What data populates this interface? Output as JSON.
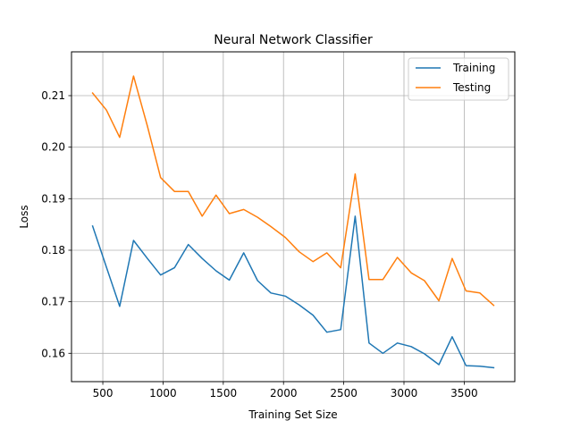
{
  "chart_data": {
    "type": "line",
    "title": "Neural Network Classifier",
    "xlabel": "Training Set Size",
    "ylabel": "Loss",
    "xlim": [
      240,
      3920
    ],
    "ylim": [
      0.1545,
      0.2185
    ],
    "xticks": [
      500,
      1000,
      1500,
      2000,
      2500,
      3000,
      3500
    ],
    "yticks": [
      0.16,
      0.17,
      0.18,
      0.19,
      0.2,
      0.21
    ],
    "ytick_labels": [
      "0.16",
      "0.17",
      "0.18",
      "0.19",
      "0.20",
      "0.21"
    ],
    "grid": true,
    "legend_position": "top-right",
    "x": [
      415,
      530,
      640,
      755,
      870,
      980,
      1095,
      1210,
      1325,
      1440,
      1550,
      1670,
      1785,
      1895,
      2015,
      2130,
      2245,
      2360,
      2475,
      2595,
      2710,
      2825,
      2945,
      3060,
      3170,
      3290,
      3400,
      3515,
      3630,
      3745
    ],
    "series": [
      {
        "name": "Training",
        "color": "#1f77b4",
        "values": [
          0.1847,
          0.1767,
          0.1691,
          0.1819,
          0.1784,
          0.1752,
          0.1766,
          0.1811,
          0.1784,
          0.176,
          0.1742,
          0.1795,
          0.1741,
          0.1717,
          0.1711,
          0.1694,
          0.1674,
          0.1641,
          0.1646,
          0.1866,
          0.162,
          0.16,
          0.162,
          0.1613,
          0.1599,
          0.1578,
          0.1632,
          0.1576,
          0.1575,
          0.1572
        ]
      },
      {
        "name": "Testing",
        "color": "#ff7f0e",
        "values": [
          0.2105,
          0.2072,
          0.2019,
          0.2138,
          0.2041,
          0.1941,
          0.1914,
          0.1914,
          0.1866,
          0.1907,
          0.1871,
          0.1879,
          0.1864,
          0.1846,
          0.1825,
          0.1797,
          0.1778,
          0.1795,
          0.1766,
          0.1948,
          0.1743,
          0.1743,
          0.1786,
          0.1756,
          0.1741,
          0.1702,
          0.1784,
          0.1721,
          0.1717,
          0.1693
        ]
      }
    ]
  }
}
